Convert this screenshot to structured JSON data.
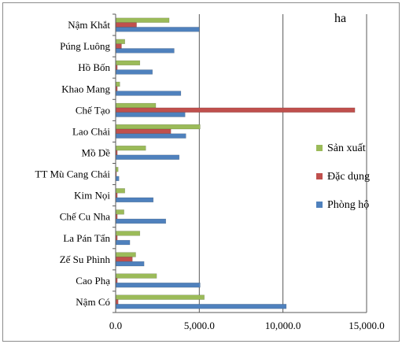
{
  "chart_data": {
    "type": "bar",
    "orientation": "horizontal",
    "unit_label": "ha",
    "categories": [
      "Nậm Khắt",
      "Púng Luông",
      "Hồ Bốn",
      "Khao Mang",
      "Chế Tạo",
      "Lao Chải",
      "Mồ Dề",
      "TT Mù Cang Chải",
      "Kim Nọi",
      "Chế Cu Nha",
      "La Pán Tẩn",
      "Zế Su Phình",
      "Cao Phạ",
      "Nậm Có"
    ],
    "series": [
      {
        "name": "Sản xuất",
        "color": "#9bbb59",
        "values": [
          3200,
          550,
          1450,
          250,
          2400,
          5050,
          1800,
          150,
          550,
          500,
          1450,
          1200,
          2450,
          5300
        ]
      },
      {
        "name": "Đặc dụng",
        "color": "#c0504d",
        "values": [
          1250,
          350,
          100,
          100,
          14300,
          3300,
          100,
          50,
          100,
          100,
          100,
          1000,
          100,
          150
        ]
      },
      {
        "name": "Phòng hộ",
        "color": "#4f81bd",
        "values": [
          5000,
          3500,
          2200,
          3900,
          4150,
          4200,
          3800,
          200,
          2250,
          3000,
          850,
          1700,
          5050,
          10200
        ]
      }
    ],
    "xlim": [
      0,
      15000
    ],
    "xticks": [
      "0.0",
      "5,000.0",
      "10,000.0",
      "15,000.0"
    ],
    "grid": "vertical",
    "legend_position": "right"
  }
}
